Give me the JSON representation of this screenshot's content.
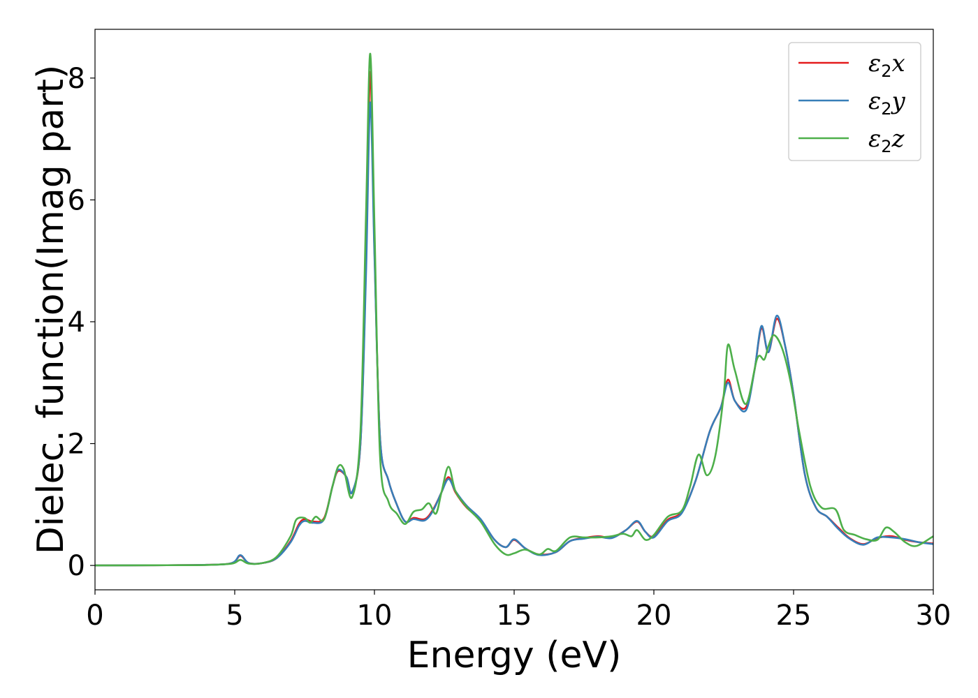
{
  "chart_data": {
    "type": "line",
    "title": "",
    "xlabel": "Energy (eV)",
    "ylabel": "Dielec. function(Imag part)",
    "xlim": [
      0,
      30
    ],
    "ylim": [
      -0.4,
      8.8
    ],
    "xticks": [
      0,
      5,
      10,
      15,
      20,
      25,
      30
    ],
    "yticks": [
      0,
      2,
      4,
      6,
      8
    ],
    "grid": false,
    "legend_position": "top-right",
    "series": [
      {
        "name": "ε2x",
        "legend_base": "ε",
        "legend_sub": "2",
        "legend_suffix": "x",
        "color": "#e41a1c",
        "points": [
          [
            0,
            0
          ],
          [
            2,
            0.003
          ],
          [
            4,
            0.01
          ],
          [
            4.9,
            0.04
          ],
          [
            5.2,
            0.16
          ],
          [
            5.5,
            0.04
          ],
          [
            6.0,
            0.04
          ],
          [
            6.5,
            0.12
          ],
          [
            7.0,
            0.4
          ],
          [
            7.3,
            0.68
          ],
          [
            7.5,
            0.76
          ],
          [
            7.8,
            0.72
          ],
          [
            8.2,
            0.78
          ],
          [
            8.5,
            1.3
          ],
          [
            8.7,
            1.55
          ],
          [
            9.0,
            1.45
          ],
          [
            9.2,
            1.2
          ],
          [
            9.5,
            2.0
          ],
          [
            9.7,
            5.0
          ],
          [
            9.85,
            8.1
          ],
          [
            10.0,
            5.2
          ],
          [
            10.2,
            2.1
          ],
          [
            10.5,
            1.4
          ],
          [
            10.8,
            1.0
          ],
          [
            11.1,
            0.72
          ],
          [
            11.4,
            0.78
          ],
          [
            11.8,
            0.76
          ],
          [
            12.1,
            0.92
          ],
          [
            12.4,
            1.2
          ],
          [
            12.65,
            1.45
          ],
          [
            12.9,
            1.2
          ],
          [
            13.3,
            0.95
          ],
          [
            13.8,
            0.75
          ],
          [
            14.3,
            0.42
          ],
          [
            14.7,
            0.3
          ],
          [
            15.0,
            0.42
          ],
          [
            15.4,
            0.28
          ],
          [
            15.9,
            0.18
          ],
          [
            16.5,
            0.22
          ],
          [
            17.0,
            0.4
          ],
          [
            17.5,
            0.45
          ],
          [
            18.0,
            0.48
          ],
          [
            18.5,
            0.46
          ],
          [
            19.0,
            0.58
          ],
          [
            19.4,
            0.72
          ],
          [
            19.7,
            0.55
          ],
          [
            20.0,
            0.48
          ],
          [
            20.5,
            0.75
          ],
          [
            21.0,
            0.88
          ],
          [
            21.5,
            1.4
          ],
          [
            22.0,
            2.2
          ],
          [
            22.4,
            2.6
          ],
          [
            22.65,
            3.05
          ],
          [
            22.9,
            2.7
          ],
          [
            23.3,
            2.6
          ],
          [
            23.6,
            3.2
          ],
          [
            23.85,
            3.9
          ],
          [
            24.1,
            3.5
          ],
          [
            24.4,
            4.05
          ],
          [
            24.7,
            3.6
          ],
          [
            25.0,
            2.8
          ],
          [
            25.4,
            1.5
          ],
          [
            25.8,
            0.95
          ],
          [
            26.2,
            0.8
          ],
          [
            26.6,
            0.62
          ],
          [
            27.0,
            0.45
          ],
          [
            27.5,
            0.35
          ],
          [
            28.0,
            0.45
          ],
          [
            28.5,
            0.48
          ],
          [
            29.0,
            0.42
          ],
          [
            29.5,
            0.38
          ],
          [
            30,
            0.36
          ]
        ]
      },
      {
        "name": "ε2y",
        "legend_base": "ε",
        "legend_sub": "2",
        "legend_suffix": "y",
        "color": "#377eb8",
        "points": [
          [
            0,
            0
          ],
          [
            2,
            0.003
          ],
          [
            4,
            0.01
          ],
          [
            4.9,
            0.04
          ],
          [
            5.2,
            0.17
          ],
          [
            5.5,
            0.04
          ],
          [
            6.0,
            0.04
          ],
          [
            6.5,
            0.12
          ],
          [
            7.0,
            0.38
          ],
          [
            7.3,
            0.65
          ],
          [
            7.5,
            0.73
          ],
          [
            7.8,
            0.7
          ],
          [
            8.2,
            0.76
          ],
          [
            8.5,
            1.3
          ],
          [
            8.7,
            1.57
          ],
          [
            9.0,
            1.45
          ],
          [
            9.2,
            1.2
          ],
          [
            9.5,
            2.0
          ],
          [
            9.7,
            4.8
          ],
          [
            9.85,
            7.6
          ],
          [
            10.0,
            5.1
          ],
          [
            10.2,
            2.1
          ],
          [
            10.5,
            1.4
          ],
          [
            10.8,
            1.0
          ],
          [
            11.1,
            0.72
          ],
          [
            11.4,
            0.76
          ],
          [
            11.8,
            0.74
          ],
          [
            12.1,
            0.9
          ],
          [
            12.4,
            1.2
          ],
          [
            12.65,
            1.42
          ],
          [
            12.9,
            1.22
          ],
          [
            13.3,
            0.98
          ],
          [
            13.8,
            0.76
          ],
          [
            14.3,
            0.42
          ],
          [
            14.7,
            0.3
          ],
          [
            15.0,
            0.43
          ],
          [
            15.4,
            0.28
          ],
          [
            15.9,
            0.17
          ],
          [
            16.5,
            0.22
          ],
          [
            17.0,
            0.4
          ],
          [
            17.5,
            0.44
          ],
          [
            18.0,
            0.47
          ],
          [
            18.5,
            0.45
          ],
          [
            19.0,
            0.58
          ],
          [
            19.4,
            0.73
          ],
          [
            19.7,
            0.55
          ],
          [
            20.0,
            0.46
          ],
          [
            20.5,
            0.73
          ],
          [
            21.0,
            0.86
          ],
          [
            21.5,
            1.4
          ],
          [
            22.0,
            2.2
          ],
          [
            22.4,
            2.6
          ],
          [
            22.65,
            3.0
          ],
          [
            22.9,
            2.7
          ],
          [
            23.3,
            2.55
          ],
          [
            23.6,
            3.2
          ],
          [
            23.85,
            3.93
          ],
          [
            24.1,
            3.5
          ],
          [
            24.4,
            4.1
          ],
          [
            24.7,
            3.6
          ],
          [
            25.0,
            2.8
          ],
          [
            25.4,
            1.5
          ],
          [
            25.8,
            0.95
          ],
          [
            26.2,
            0.8
          ],
          [
            26.6,
            0.6
          ],
          [
            27.0,
            0.44
          ],
          [
            27.5,
            0.34
          ],
          [
            28.0,
            0.46
          ],
          [
            28.5,
            0.46
          ],
          [
            29.0,
            0.43
          ],
          [
            29.5,
            0.38
          ],
          [
            30,
            0.35
          ]
        ]
      },
      {
        "name": "ε2z",
        "legend_base": "ε",
        "legend_sub": "2",
        "legend_suffix": "z",
        "color": "#4daf4a",
        "points": [
          [
            0,
            0
          ],
          [
            2,
            0.003
          ],
          [
            4,
            0.008
          ],
          [
            4.9,
            0.03
          ],
          [
            5.2,
            0.09
          ],
          [
            5.5,
            0.03
          ],
          [
            6.0,
            0.04
          ],
          [
            6.5,
            0.14
          ],
          [
            7.0,
            0.48
          ],
          [
            7.2,
            0.75
          ],
          [
            7.5,
            0.78
          ],
          [
            7.7,
            0.7
          ],
          [
            7.9,
            0.8
          ],
          [
            8.2,
            0.76
          ],
          [
            8.5,
            1.3
          ],
          [
            8.7,
            1.62
          ],
          [
            8.9,
            1.58
          ],
          [
            9.2,
            1.12
          ],
          [
            9.5,
            2.2
          ],
          [
            9.7,
            5.8
          ],
          [
            9.85,
            8.4
          ],
          [
            10.0,
            5.6
          ],
          [
            10.2,
            1.8
          ],
          [
            10.5,
            1.05
          ],
          [
            10.8,
            0.85
          ],
          [
            11.1,
            0.68
          ],
          [
            11.4,
            0.88
          ],
          [
            11.7,
            0.92
          ],
          [
            11.95,
            1.02
          ],
          [
            12.2,
            0.85
          ],
          [
            12.4,
            1.2
          ],
          [
            12.65,
            1.62
          ],
          [
            12.9,
            1.22
          ],
          [
            13.3,
            0.96
          ],
          [
            13.8,
            0.72
          ],
          [
            14.3,
            0.35
          ],
          [
            14.7,
            0.18
          ],
          [
            15.0,
            0.2
          ],
          [
            15.4,
            0.26
          ],
          [
            15.9,
            0.18
          ],
          [
            16.2,
            0.27
          ],
          [
            16.5,
            0.24
          ],
          [
            17.0,
            0.46
          ],
          [
            17.5,
            0.46
          ],
          [
            18.0,
            0.46
          ],
          [
            18.5,
            0.48
          ],
          [
            18.9,
            0.52
          ],
          [
            19.2,
            0.48
          ],
          [
            19.4,
            0.58
          ],
          [
            19.7,
            0.42
          ],
          [
            20.0,
            0.5
          ],
          [
            20.5,
            0.8
          ],
          [
            21.0,
            0.9
          ],
          [
            21.3,
            1.3
          ],
          [
            21.6,
            1.82
          ],
          [
            21.9,
            1.48
          ],
          [
            22.2,
            1.8
          ],
          [
            22.5,
            2.8
          ],
          [
            22.65,
            3.62
          ],
          [
            22.9,
            3.2
          ],
          [
            23.3,
            2.65
          ],
          [
            23.7,
            3.4
          ],
          [
            23.95,
            3.38
          ],
          [
            24.1,
            3.6
          ],
          [
            24.3,
            3.78
          ],
          [
            24.6,
            3.55
          ],
          [
            24.9,
            3.0
          ],
          [
            25.2,
            2.2
          ],
          [
            25.6,
            1.3
          ],
          [
            26.0,
            0.95
          ],
          [
            26.5,
            0.92
          ],
          [
            26.8,
            0.58
          ],
          [
            27.2,
            0.5
          ],
          [
            27.6,
            0.43
          ],
          [
            28.0,
            0.42
          ],
          [
            28.3,
            0.62
          ],
          [
            28.6,
            0.55
          ],
          [
            29.0,
            0.38
          ],
          [
            29.4,
            0.32
          ],
          [
            30,
            0.48
          ]
        ]
      }
    ]
  }
}
